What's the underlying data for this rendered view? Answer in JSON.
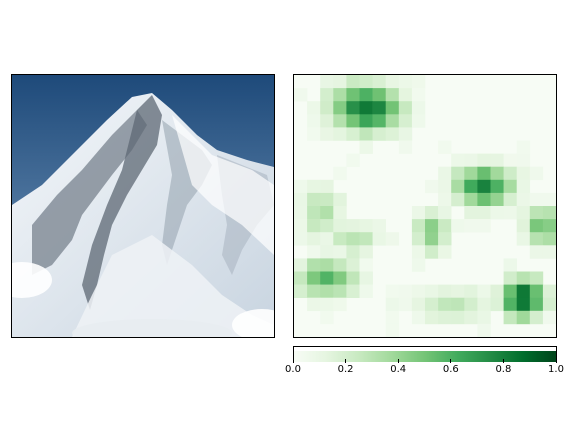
{
  "photo": {
    "subject": "snow-covered mountain peak",
    "sky_top": "#1e4a7a",
    "sky_bottom": "#6f93b8"
  },
  "heatmap": {
    "colormap": "Greens",
    "grid": 20,
    "hotspots": [
      {
        "cx": 5.5,
        "cy": 2.5,
        "rx": 2.6,
        "ry": 1.8,
        "peak": 0.85
      },
      {
        "cx": 14.5,
        "cy": 8.5,
        "rx": 2.2,
        "ry": 1.5,
        "peak": 0.78
      },
      {
        "cx": 17.5,
        "cy": 17.0,
        "rx": 1.6,
        "ry": 1.5,
        "peak": 0.92
      },
      {
        "cx": 2.5,
        "cy": 15.5,
        "rx": 2.2,
        "ry": 1.4,
        "peak": 0.6
      },
      {
        "cx": 10.5,
        "cy": 12.0,
        "rx": 1.3,
        "ry": 1.6,
        "peak": 0.45
      },
      {
        "cx": 19.0,
        "cy": 11.5,
        "rx": 1.3,
        "ry": 1.5,
        "peak": 0.55
      },
      {
        "cx": 2.0,
        "cy": 10.5,
        "rx": 1.5,
        "ry": 2.0,
        "peak": 0.35
      },
      {
        "cx": 4.5,
        "cy": 12.5,
        "rx": 2.0,
        "ry": 1.2,
        "peak": 0.3
      },
      {
        "cx": 12.0,
        "cy": 17.5,
        "rx": 3.5,
        "ry": 1.3,
        "peak": 0.25
      }
    ]
  },
  "colorbar": {
    "colormap": "Greens",
    "range": [
      0.0,
      1.0
    ],
    "ticks": [
      "0.0",
      "0.2",
      "0.4",
      "0.6",
      "0.8",
      "1.0"
    ]
  }
}
